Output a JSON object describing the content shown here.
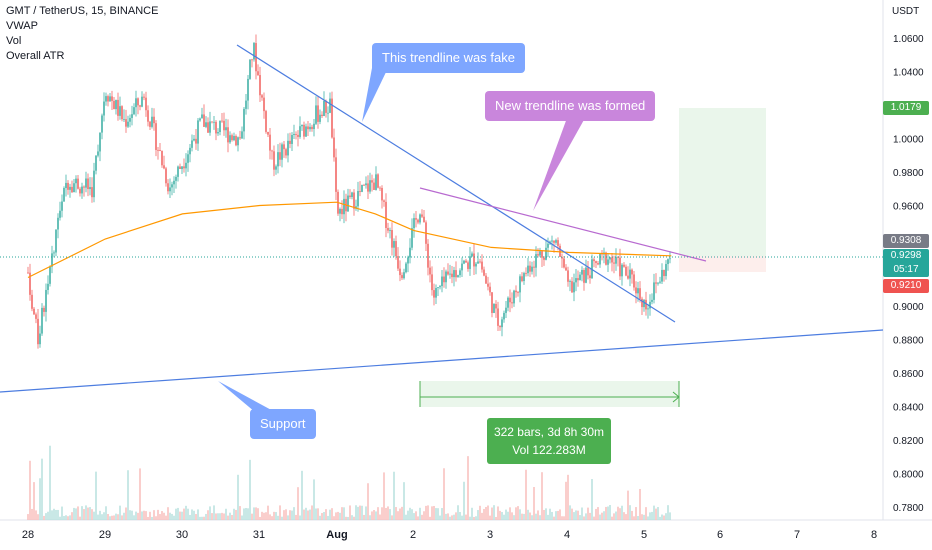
{
  "legend": {
    "symbol": "GMT / TetherUS, 15, BINANCE",
    "indicators": [
      "VWAP",
      "Vol",
      "Overall ATR"
    ]
  },
  "axis": {
    "currency": "USDT",
    "y_ticks": [
      "1.0600",
      "1.0400",
      "1.0200",
      "1.0000",
      "0.9800",
      "0.9600",
      "0.9400",
      "0.9200",
      "0.9000",
      "0.8800",
      "0.8600",
      "0.8400",
      "0.8200",
      "0.8000",
      "0.7800"
    ],
    "x_ticks": [
      "28",
      "29",
      "30",
      "31",
      "Aug",
      "2",
      "3",
      "4",
      "5",
      "6",
      "7",
      "8"
    ]
  },
  "price_tags": {
    "target": "1.0179",
    "gray": "0.9308",
    "current": "0.9298",
    "countdown": "05:17",
    "stop": "0.9210"
  },
  "annotations": {
    "fake": "This trendline was fake",
    "new": "New trendline was formed",
    "support": "Support",
    "measure_bars": "322 bars, 3d 8h 30m",
    "measure_vol": "Vol 122.283M"
  },
  "colors": {
    "up": "#26a69a",
    "down": "#ef5350",
    "vwap": "#ff9800",
    "trendline_blue": "#4d7de0",
    "trendline_purple": "#b86ad0",
    "measure": "#4caf50"
  },
  "chart_data": {
    "type": "candlestick",
    "title": "GMT / TetherUS, 15, BINANCE",
    "y_range": [
      0.77,
      1.07
    ],
    "x_range_days": [
      "Jul 28",
      "Aug 8"
    ],
    "approx_close_path": [
      {
        "x": "Jul 28 00:00",
        "y": 0.92
      },
      {
        "x": "Jul 28 03:00",
        "y": 0.88
      },
      {
        "x": "Jul 28 12:00",
        "y": 0.975
      },
      {
        "x": "Jul 28 20:00",
        "y": 0.97
      },
      {
        "x": "Jul 29 00:00",
        "y": 1.03
      },
      {
        "x": "Jul 29 06:00",
        "y": 1.01
      },
      {
        "x": "Jul 29 12:00",
        "y": 1.025
      },
      {
        "x": "Jul 29 20:00",
        "y": 0.97
      },
      {
        "x": "Jul 30 06:00",
        "y": 1.01
      },
      {
        "x": "Jul 30 18:00",
        "y": 1.0
      },
      {
        "x": "Jul 30 22:00",
        "y": 1.055
      },
      {
        "x": "Jul 31 04:00",
        "y": 0.985
      },
      {
        "x": "Jul 31 18:00",
        "y": 1.015
      },
      {
        "x": "Jul 31 22:00",
        "y": 1.02
      },
      {
        "x": "Aug 1 00:00",
        "y": 0.955
      },
      {
        "x": "Aug 1 12:00",
        "y": 0.975
      },
      {
        "x": "Aug 1 20:00",
        "y": 0.92
      },
      {
        "x": "Aug 2 02:00",
        "y": 0.96
      },
      {
        "x": "Aug 2 06:00",
        "y": 0.905
      },
      {
        "x": "Aug 2 12:00",
        "y": 0.92
      },
      {
        "x": "Aug 2 20:00",
        "y": 0.93
      },
      {
        "x": "Aug 3 02:00",
        "y": 0.89
      },
      {
        "x": "Aug 3 12:00",
        "y": 0.925
      },
      {
        "x": "Aug 3 20:00",
        "y": 0.94
      },
      {
        "x": "Aug 4 00:00",
        "y": 0.91
      },
      {
        "x": "Aug 4 12:00",
        "y": 0.93
      },
      {
        "x": "Aug 4 20:00",
        "y": 0.915
      },
      {
        "x": "Aug 5 00:00",
        "y": 0.9
      },
      {
        "x": "Aug 5 08:00",
        "y": 0.9298
      }
    ],
    "vwap": [
      {
        "x": "Jul 28 00:00",
        "y": 0.917
      },
      {
        "x": "Jul 29 00:00",
        "y": 0.94
      },
      {
        "x": "Jul 30 00:00",
        "y": 0.955
      },
      {
        "x": "Jul 31 00:00",
        "y": 0.96
      },
      {
        "x": "Aug 1 00:00",
        "y": 0.962
      },
      {
        "x": "Aug 1 12:00",
        "y": 0.955
      },
      {
        "x": "Aug 2 00:00",
        "y": 0.945
      },
      {
        "x": "Aug 3 00:00",
        "y": 0.935
      },
      {
        "x": "Aug 4 00:00",
        "y": 0.932
      },
      {
        "x": "Aug 5 08:00",
        "y": 0.93
      }
    ]
  }
}
